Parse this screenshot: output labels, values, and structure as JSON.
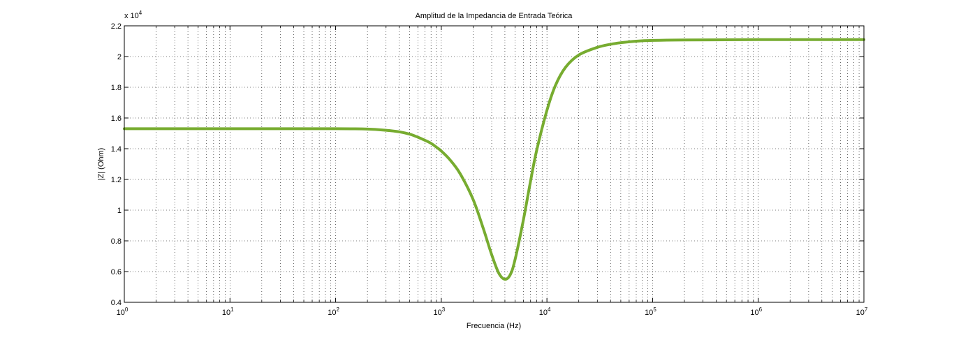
{
  "chart_data": {
    "type": "line",
    "title": "Amplitud de la Impedancia de Entrada Teórica",
    "xlabel": "Frecuencia (Hz)",
    "ylabel": "|Z| (Ohm)",
    "x_scale": "log",
    "xlim": [
      1,
      10000000
    ],
    "ylim": [
      0.4,
      2.2
    ],
    "y_multiplier_label": "x 10",
    "y_multiplier_exp": "4",
    "x_ticks": [
      {
        "base": "10",
        "exp": "0",
        "value": 1
      },
      {
        "base": "10",
        "exp": "1",
        "value": 10
      },
      {
        "base": "10",
        "exp": "2",
        "value": 100
      },
      {
        "base": "10",
        "exp": "3",
        "value": 1000
      },
      {
        "base": "10",
        "exp": "4",
        "value": 10000
      },
      {
        "base": "10",
        "exp": "5",
        "value": 100000
      },
      {
        "base": "10",
        "exp": "6",
        "value": 1000000
      },
      {
        "base": "10",
        "exp": "7",
        "value": 10000000
      }
    ],
    "y_ticks": [
      "0.4",
      "0.6",
      "0.8",
      "1",
      "1.2",
      "1.4",
      "1.6",
      "1.8",
      "2",
      "2.2"
    ],
    "grid": true,
    "line_color": "#77ac30",
    "series": [
      {
        "x": [
          1,
          10,
          100,
          200,
          300,
          400,
          500,
          600,
          700,
          800,
          900,
          1000,
          1200,
          1500,
          2000,
          2500,
          3000,
          3500,
          4000,
          4500,
          5000,
          6000,
          7000,
          8000,
          10000,
          12000,
          15000,
          20000,
          30000,
          40000,
          50000,
          70000,
          100000,
          200000,
          1000000,
          10000000
        ],
        "y": [
          1.53,
          1.53,
          1.53,
          1.528,
          1.52,
          1.51,
          1.495,
          1.475,
          1.455,
          1.435,
          1.41,
          1.385,
          1.33,
          1.24,
          1.07,
          0.88,
          0.71,
          0.59,
          0.55,
          0.58,
          0.68,
          0.94,
          1.19,
          1.39,
          1.65,
          1.81,
          1.93,
          2.01,
          2.06,
          2.08,
          2.09,
          2.1,
          2.105,
          2.108,
          2.11,
          2.11
        ]
      }
    ]
  }
}
